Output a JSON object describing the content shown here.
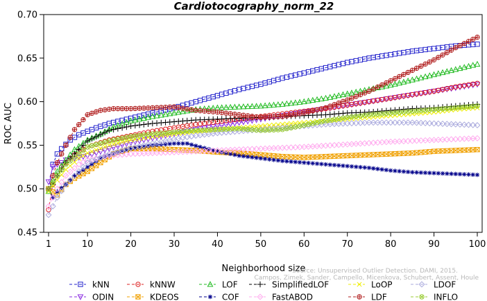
{
  "chart_data": {
    "type": "line",
    "title": "Cardiotocography_norm_22",
    "xlabel": "Neighborhood size",
    "ylabel": "ROC AUC",
    "xlim": [
      1,
      100
    ],
    "ylim": [
      0.45,
      0.7
    ],
    "xticks": [
      1,
      10,
      20,
      30,
      40,
      50,
      60,
      70,
      80,
      90,
      100
    ],
    "yticks": [
      "0.45",
      "0.50",
      "0.55",
      "0.60",
      "0.65",
      "0.70"
    ],
    "legend_position": "bottom",
    "grid": false,
    "watermark": [
      "Source: Unsupervised Outlier Detection. DAMI, 2015.",
      "Campos, Zimek, Sander, Campello, Micenkova, Schubert, Assent, Houle"
    ],
    "series": [
      {
        "name": "kNN",
        "color": "#2222cc",
        "marker": "square",
        "points": [
          [
            1,
            0.5
          ],
          [
            2,
            0.528
          ],
          [
            3,
            0.54
          ],
          [
            4,
            0.546
          ],
          [
            5,
            0.551
          ],
          [
            6,
            0.556
          ],
          [
            8,
            0.562
          ],
          [
            10,
            0.566
          ],
          [
            12,
            0.57
          ],
          [
            15,
            0.575
          ],
          [
            20,
            0.581
          ],
          [
            25,
            0.587
          ],
          [
            30,
            0.593
          ],
          [
            35,
            0.6
          ],
          [
            40,
            0.607
          ],
          [
            45,
            0.614
          ],
          [
            50,
            0.62
          ],
          [
            55,
            0.627
          ],
          [
            60,
            0.633
          ],
          [
            65,
            0.639
          ],
          [
            70,
            0.645
          ],
          [
            75,
            0.65
          ],
          [
            80,
            0.654
          ],
          [
            85,
            0.658
          ],
          [
            90,
            0.661
          ],
          [
            95,
            0.664
          ],
          [
            100,
            0.666
          ]
        ]
      },
      {
        "name": "ODIN",
        "color": "#8a2be2",
        "marker": "triangle-down",
        "points": [
          [
            1,
            0.508
          ],
          [
            2,
            0.525
          ],
          [
            3,
            0.528
          ],
          [
            4,
            0.53
          ],
          [
            5,
            0.533
          ],
          [
            7,
            0.535
          ],
          [
            10,
            0.538
          ],
          [
            15,
            0.546
          ],
          [
            20,
            0.553
          ],
          [
            25,
            0.558
          ],
          [
            30,
            0.563
          ],
          [
            35,
            0.568
          ],
          [
            40,
            0.572
          ],
          [
            45,
            0.576
          ],
          [
            50,
            0.58
          ],
          [
            55,
            0.584
          ],
          [
            60,
            0.588
          ],
          [
            65,
            0.592
          ],
          [
            70,
            0.596
          ],
          [
            75,
            0.6
          ],
          [
            80,
            0.604
          ],
          [
            85,
            0.608
          ],
          [
            90,
            0.612
          ],
          [
            95,
            0.616
          ],
          [
            100,
            0.62
          ]
        ]
      },
      {
        "name": "kNNW",
        "color": "#dd2222",
        "marker": "circle",
        "points": [
          [
            1,
            0.476
          ],
          [
            2,
            0.505
          ],
          [
            3,
            0.515
          ],
          [
            4,
            0.525
          ],
          [
            6,
            0.535
          ],
          [
            8,
            0.543
          ],
          [
            10,
            0.548
          ],
          [
            15,
            0.556
          ],
          [
            20,
            0.561
          ],
          [
            25,
            0.566
          ],
          [
            30,
            0.57
          ],
          [
            35,
            0.574
          ],
          [
            40,
            0.577
          ],
          [
            45,
            0.58
          ],
          [
            50,
            0.583
          ],
          [
            55,
            0.586
          ],
          [
            60,
            0.589
          ],
          [
            65,
            0.592
          ],
          [
            70,
            0.596
          ],
          [
            75,
            0.6
          ],
          [
            80,
            0.604
          ],
          [
            85,
            0.608
          ],
          [
            90,
            0.612
          ],
          [
            95,
            0.617
          ],
          [
            100,
            0.621
          ]
        ]
      },
      {
        "name": "KDEOS",
        "color": "#f0a000",
        "marker": "square-x",
        "points": [
          [
            1,
            0.5
          ],
          [
            3,
            0.493
          ],
          [
            5,
            0.505
          ],
          [
            7,
            0.512
          ],
          [
            10,
            0.52
          ],
          [
            13,
            0.53
          ],
          [
            16,
            0.54
          ],
          [
            20,
            0.546
          ],
          [
            25,
            0.546
          ],
          [
            30,
            0.545
          ],
          [
            35,
            0.544
          ],
          [
            40,
            0.542
          ],
          [
            45,
            0.541
          ],
          [
            50,
            0.539
          ],
          [
            55,
            0.537
          ],
          [
            60,
            0.536
          ],
          [
            65,
            0.537
          ],
          [
            70,
            0.538
          ],
          [
            75,
            0.539
          ],
          [
            80,
            0.54
          ],
          [
            85,
            0.541
          ],
          [
            90,
            0.543
          ],
          [
            95,
            0.544
          ],
          [
            100,
            0.545
          ]
        ]
      },
      {
        "name": "LOF",
        "color": "#22bb22",
        "marker": "triangle",
        "points": [
          [
            1,
            0.497
          ],
          [
            2,
            0.51
          ],
          [
            3,
            0.52
          ],
          [
            5,
            0.533
          ],
          [
            7,
            0.545
          ],
          [
            10,
            0.556
          ],
          [
            13,
            0.563
          ],
          [
            16,
            0.571
          ],
          [
            20,
            0.578
          ],
          [
            25,
            0.583
          ],
          [
            30,
            0.587
          ],
          [
            35,
            0.591
          ],
          [
            40,
            0.593
          ],
          [
            45,
            0.594
          ],
          [
            50,
            0.595
          ],
          [
            55,
            0.597
          ],
          [
            60,
            0.6
          ],
          [
            65,
            0.604
          ],
          [
            70,
            0.609
          ],
          [
            75,
            0.614
          ],
          [
            80,
            0.619
          ],
          [
            85,
            0.625
          ],
          [
            90,
            0.631
          ],
          [
            95,
            0.637
          ],
          [
            100,
            0.643
          ]
        ]
      },
      {
        "name": "COF",
        "color": "#00008b",
        "marker": "asterisk",
        "points": [
          [
            1,
            0.5
          ],
          [
            2,
            0.49
          ],
          [
            3,
            0.497
          ],
          [
            5,
            0.505
          ],
          [
            7,
            0.515
          ],
          [
            10,
            0.525
          ],
          [
            13,
            0.535
          ],
          [
            16,
            0.54
          ],
          [
            20,
            0.546
          ],
          [
            25,
            0.55
          ],
          [
            30,
            0.552
          ],
          [
            33,
            0.552
          ],
          [
            36,
            0.548
          ],
          [
            40,
            0.543
          ],
          [
            45,
            0.538
          ],
          [
            50,
            0.535
          ],
          [
            55,
            0.532
          ],
          [
            60,
            0.53
          ],
          [
            65,
            0.528
          ],
          [
            70,
            0.526
          ],
          [
            75,
            0.524
          ],
          [
            80,
            0.521
          ],
          [
            85,
            0.519
          ],
          [
            90,
            0.518
          ],
          [
            95,
            0.517
          ],
          [
            100,
            0.516
          ]
        ]
      },
      {
        "name": "SimplifiedLOF",
        "color": "#000000",
        "marker": "plus",
        "points": [
          [
            1,
            0.5
          ],
          [
            2,
            0.505
          ],
          [
            3,
            0.515
          ],
          [
            5,
            0.53
          ],
          [
            8,
            0.545
          ],
          [
            10,
            0.555
          ],
          [
            15,
            0.567
          ],
          [
            20,
            0.572
          ],
          [
            25,
            0.575
          ],
          [
            30,
            0.577
          ],
          [
            35,
            0.579
          ],
          [
            40,
            0.58
          ],
          [
            45,
            0.581
          ],
          [
            50,
            0.582
          ],
          [
            55,
            0.583
          ],
          [
            60,
            0.584
          ],
          [
            65,
            0.585
          ],
          [
            70,
            0.587
          ],
          [
            75,
            0.588
          ],
          [
            80,
            0.59
          ],
          [
            85,
            0.592
          ],
          [
            90,
            0.593
          ],
          [
            95,
            0.595
          ],
          [
            100,
            0.597
          ]
        ]
      },
      {
        "name": "FastABOD",
        "color": "#ffaaee",
        "marker": "diamond",
        "points": [
          [
            1,
            0.48
          ],
          [
            3,
            0.5
          ],
          [
            5,
            0.515
          ],
          [
            8,
            0.528
          ],
          [
            10,
            0.533
          ],
          [
            15,
            0.538
          ],
          [
            20,
            0.54
          ],
          [
            30,
            0.542
          ],
          [
            40,
            0.544
          ],
          [
            50,
            0.546
          ],
          [
            60,
            0.548
          ],
          [
            70,
            0.551
          ],
          [
            80,
            0.554
          ],
          [
            90,
            0.556
          ],
          [
            100,
            0.558
          ]
        ]
      },
      {
        "name": "LoOP",
        "color": "#eeee00",
        "marker": "x",
        "points": [
          [
            1,
            0.497
          ],
          [
            3,
            0.51
          ],
          [
            5,
            0.522
          ],
          [
            8,
            0.535
          ],
          [
            10,
            0.541
          ],
          [
            15,
            0.55
          ],
          [
            20,
            0.556
          ],
          [
            25,
            0.56
          ],
          [
            30,
            0.563
          ],
          [
            35,
            0.566
          ],
          [
            40,
            0.568
          ],
          [
            45,
            0.57
          ],
          [
            50,
            0.572
          ],
          [
            55,
            0.574
          ],
          [
            60,
            0.576
          ],
          [
            65,
            0.578
          ],
          [
            70,
            0.58
          ],
          [
            75,
            0.582
          ],
          [
            80,
            0.584
          ],
          [
            85,
            0.586
          ],
          [
            90,
            0.588
          ],
          [
            95,
            0.591
          ],
          [
            100,
            0.593
          ]
        ]
      },
      {
        "name": "LDF",
        "color": "#b22222",
        "marker": "circle-plus",
        "points": [
          [
            1,
            0.5
          ],
          [
            3,
            0.53
          ],
          [
            5,
            0.55
          ],
          [
            7,
            0.568
          ],
          [
            10,
            0.585
          ],
          [
            13,
            0.59
          ],
          [
            16,
            0.592
          ],
          [
            20,
            0.592
          ],
          [
            25,
            0.593
          ],
          [
            30,
            0.594
          ],
          [
            35,
            0.59
          ],
          [
            40,
            0.588
          ],
          [
            45,
            0.585
          ],
          [
            50,
            0.582
          ],
          [
            55,
            0.583
          ],
          [
            60,
            0.587
          ],
          [
            65,
            0.593
          ],
          [
            70,
            0.602
          ],
          [
            75,
            0.612
          ],
          [
            80,
            0.624
          ],
          [
            85,
            0.636
          ],
          [
            90,
            0.648
          ],
          [
            95,
            0.662
          ],
          [
            100,
            0.674
          ]
        ]
      },
      {
        "name": "LDOF",
        "color": "#aaaadd",
        "marker": "diamond",
        "points": [
          [
            1,
            0.47
          ],
          [
            3,
            0.49
          ],
          [
            5,
            0.505
          ],
          [
            8,
            0.52
          ],
          [
            10,
            0.53
          ],
          [
            15,
            0.54
          ],
          [
            20,
            0.547
          ],
          [
            25,
            0.552
          ],
          [
            30,
            0.557
          ],
          [
            35,
            0.561
          ],
          [
            40,
            0.564
          ],
          [
            45,
            0.566
          ],
          [
            50,
            0.568
          ],
          [
            55,
            0.57
          ],
          [
            60,
            0.572
          ],
          [
            65,
            0.574
          ],
          [
            70,
            0.575
          ],
          [
            75,
            0.576
          ],
          [
            80,
            0.576
          ],
          [
            85,
            0.576
          ],
          [
            90,
            0.575
          ],
          [
            95,
            0.574
          ],
          [
            100,
            0.573
          ]
        ]
      },
      {
        "name": "INFLO",
        "color": "#99cc33",
        "marker": "circle-x",
        "points": [
          [
            1,
            0.5
          ],
          [
            3,
            0.515
          ],
          [
            5,
            0.528
          ],
          [
            8,
            0.54
          ],
          [
            10,
            0.548
          ],
          [
            15,
            0.555
          ],
          [
            20,
            0.56
          ],
          [
            25,
            0.563
          ],
          [
            30,
            0.565
          ],
          [
            35,
            0.567
          ],
          [
            40,
            0.568
          ],
          [
            45,
            0.569
          ],
          [
            50,
            0.567
          ],
          [
            55,
            0.568
          ],
          [
            60,
            0.573
          ],
          [
            65,
            0.578
          ],
          [
            70,
            0.582
          ],
          [
            75,
            0.585
          ],
          [
            80,
            0.587
          ],
          [
            85,
            0.589
          ],
          [
            90,
            0.591
          ],
          [
            95,
            0.593
          ],
          [
            100,
            0.595
          ]
        ]
      }
    ]
  }
}
